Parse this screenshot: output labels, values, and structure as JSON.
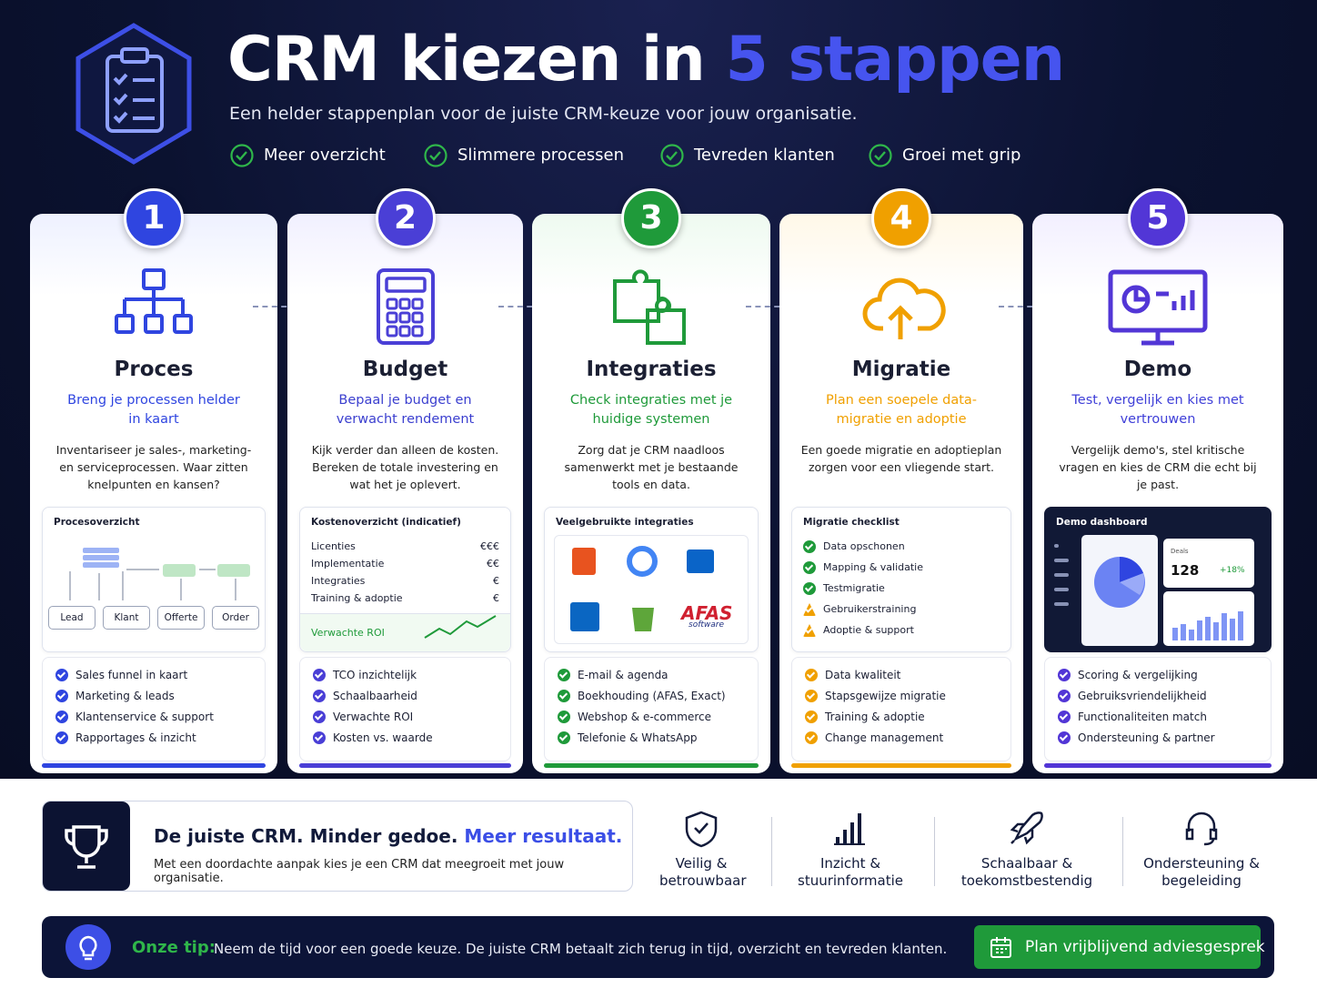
{
  "header": {
    "title_main": "CRM kiezen in",
    "title_accent": "5 stappen",
    "subtitle": "Een helder stappenplan voor de juiste CRM-keuze voor jouw organisatie.",
    "benefits": [
      "Meer overzicht",
      "Slimmere processen",
      "Tevreden klanten",
      "Groei met grip"
    ]
  },
  "steps": [
    {
      "number": "1",
      "title": "Proces",
      "subtitle": "Breng je processen helder in kaart",
      "description": "Inventariseer je sales-, marketing- en serviceprocessen. Waar zitten knelpunten en kansen?",
      "panel": {
        "title": "Procesoverzicht",
        "nodes": [
          "Lead",
          "Klant",
          "Offerte",
          "Order"
        ]
      },
      "checklist": [
        "Sales funnel in kaart",
        "Marketing & leads",
        "Klantenservice & support",
        "Rapportages & inzicht"
      ]
    },
    {
      "number": "2",
      "title": "Budget",
      "subtitle": "Bepaal je budget en verwacht rendement",
      "description": "Kijk verder dan alleen de kosten. Bereken de totale investering en wat het je oplevert.",
      "panel": {
        "title": "Kostenoverzicht (indicatief)",
        "rows": [
          [
            "Licenties",
            "€€€"
          ],
          [
            "Implementatie",
            "€€"
          ],
          [
            "Integraties",
            "€"
          ],
          [
            "Training & adoptie",
            "€"
          ]
        ],
        "footer": "Verwachte ROI"
      },
      "checklist": [
        "TCO inzichtelijk",
        "Schaalbaarheid",
        "Verwachte ROI",
        "Kosten vs. waarde"
      ]
    },
    {
      "number": "3",
      "title": "Integraties",
      "subtitle": "Check integraties met je huidige systemen",
      "description": "Zorg dat je CRM naadloos samenwerkt met je bestaande tools en data.",
      "panel": {
        "title": "Veelgebruikte integraties",
        "logo_text": "AFAS",
        "logo_subtext": "software"
      },
      "checklist": [
        "E-mail & agenda",
        "Boekhouding (AFAS, Exact)",
        "Webshop & e-commerce",
        "Telefonie & WhatsApp"
      ]
    },
    {
      "number": "4",
      "title": "Migratie",
      "subtitle": "Plan een soepele data-migratie en adoptie",
      "description": "Een goede migratie en adoptieplan zorgen voor een vliegende start.",
      "panel": {
        "title": "Migratie checklist",
        "items": [
          {
            "text": "Data opschonen",
            "status": "done"
          },
          {
            "text": "Mapping & validatie",
            "status": "done"
          },
          {
            "text": "Testmigratie",
            "status": "done"
          },
          {
            "text": "Gebruikerstraining",
            "status": "warning"
          },
          {
            "text": "Adoptie & support",
            "status": "warning"
          }
        ]
      },
      "checklist": [
        "Data kwaliteit",
        "Stapsgewijze migratie",
        "Training & adoptie",
        "Change management"
      ]
    },
    {
      "number": "5",
      "title": "Demo",
      "subtitle": "Test, vergelijk en kies met vertrouwen",
      "description": "Vergelijk demo's, stel kritische vragen en kies de CRM die echt bij je past.",
      "panel": {
        "title": "Demo dashboard",
        "kpi_label": "Deals",
        "kpi_value": "128",
        "kpi_change": "+18%"
      },
      "checklist": [
        "Scoring & vergelijking",
        "Gebruiksvriendelijkheid",
        "Functionaliteiten match",
        "Ondersteuning & partner"
      ]
    }
  ],
  "banner": {
    "title": "De juiste CRM. Minder gedoe.",
    "title_accent": "Meer resultaat.",
    "text": "Met een doordachte aanpak kies je een CRM dat meegroeit met jouw organisatie."
  },
  "features": [
    "Veilig & betrouwbaar",
    "Inzicht & stuurinformatie",
    "Schaalbaar & toekomstbestendig",
    "Ondersteuning & begeleiding"
  ],
  "tip": {
    "label": "Onze tip:",
    "text": "Neem de tijd voor een goede keuze. De juiste CRM betaalt zich terug in tijd, overzicht en tevreden klanten.",
    "button": "Plan vrijblijvend adviesgesprek"
  }
}
